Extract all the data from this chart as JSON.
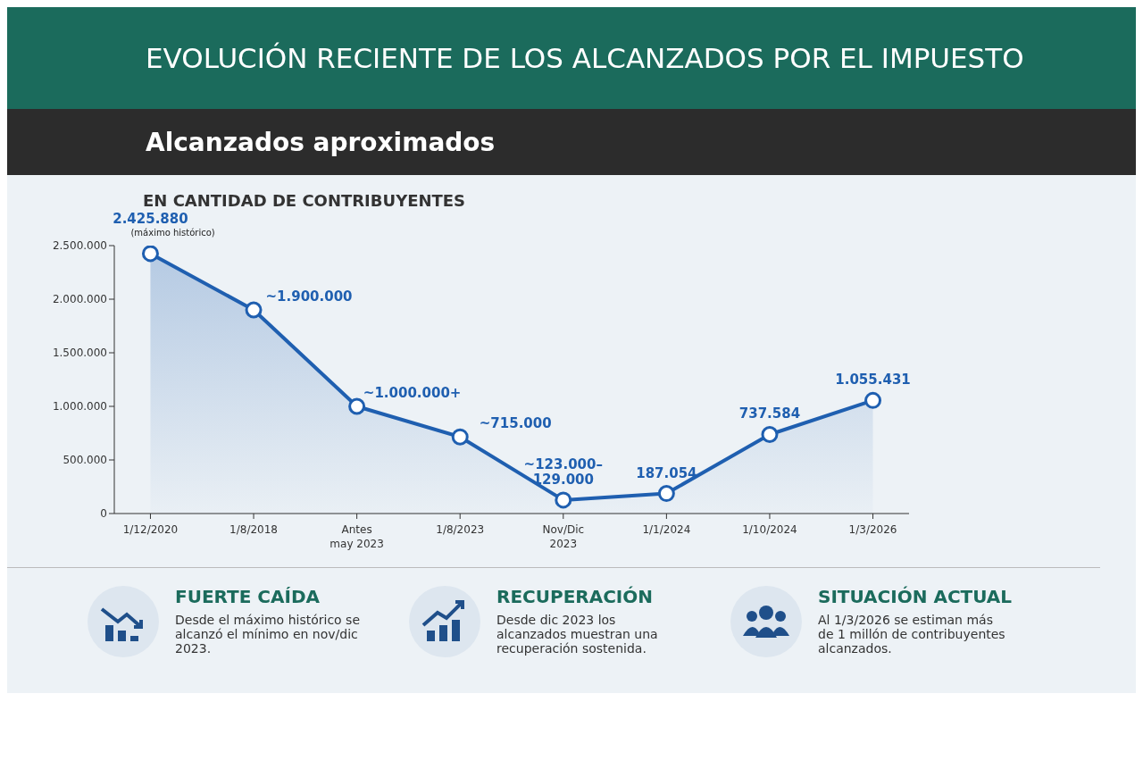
{
  "chart_data": {
    "type": "area",
    "title": "EVOLUCIÓN RECIENTE DE LOS ALCANZADOS POR EL IMPUESTO",
    "subtitle": "Alcanzados aproximados",
    "ylabel": "EN CANTIDAD DE CONTRIBUYENTES",
    "categories": [
      "1/12/2020",
      "1/8/2018",
      "Antes\nmay 2023",
      "1/8/2023",
      "Nov/Dic\n2023",
      "1/1/2024",
      "1/10/2024",
      "1/3/2026"
    ],
    "values": [
      2425880,
      1900000,
      1000000,
      715000,
      126000,
      187054,
      737584,
      1055431
    ],
    "value_labels": [
      "2.425.880",
      "~1.900.000",
      "~1.000.000+",
      "~715.000",
      "~123.000–\n129.000",
      "187.054",
      "737.584",
      "1.055.431"
    ],
    "color": "#1f5fb0",
    "marker": "circle",
    "grid": false,
    "legend": false,
    "ylim": [
      0,
      2500000
    ],
    "yticks": [
      {
        "value": 0,
        "label": "0"
      },
      {
        "value": 500000,
        "label": "500.000"
      },
      {
        "value": 1000000,
        "label": "1.000.000"
      },
      {
        "value": 1500000,
        "label": "1.500.000"
      },
      {
        "value": 2000000,
        "label": "2.000.000"
      },
      {
        "value": 2500000,
        "label": "2.500.000"
      }
    ],
    "annotations": [
      {
        "text": "(máximo histórico)",
        "x": "1/12/2020",
        "y": 2425880
      },
      "FUERTE CAÍDA",
      "Desde el máximo histórico se alcanzó el mínimo en nov/dic 2023.",
      "RECUPERACIÓN",
      "Desde dic 2023 los alcanzados muestran una recuperación sostenida.",
      "SITUACIÓN ACTUAL",
      "Al 1/3/2026 se estiman más de 1 millón de contribuyentes alcanzados."
    ]
  }
}
